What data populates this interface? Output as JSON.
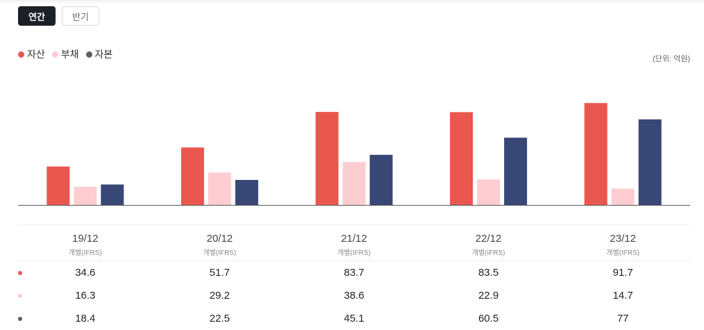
{
  "tabs": [
    {
      "label": "연간",
      "active": true
    },
    {
      "label": "반기",
      "active": false
    }
  ],
  "unit_label": "(단위: 억원)",
  "colors": {
    "asset": "#e9574f",
    "liability": "#fdcdd1",
    "equity": "#384876"
  },
  "chart_data": {
    "type": "bar",
    "categories": [
      "19/12",
      "20/12",
      "21/12",
      "22/12",
      "23/12"
    ],
    "basis": [
      "개별(IFRS)",
      "개별(IFRS)",
      "개별(IFRS)",
      "개별(IFRS)",
      "개별(IFRS)"
    ],
    "series": [
      {
        "name": "자산",
        "color": "#e9574f",
        "values": [
          "34.6",
          "51.7",
          "83.7",
          "83.5",
          "91.7"
        ]
      },
      {
        "name": "부채",
        "color": "#fdcdd1",
        "values": [
          "16.3",
          "29.2",
          "38.6",
          "22.9",
          "14.7"
        ]
      },
      {
        "name": "자본",
        "color": "#384876",
        "values": [
          "18.4",
          "22.5",
          "45.1",
          "60.5",
          "77"
        ]
      }
    ],
    "ylim": [
      0,
      100
    ],
    "legend": "top-left"
  }
}
